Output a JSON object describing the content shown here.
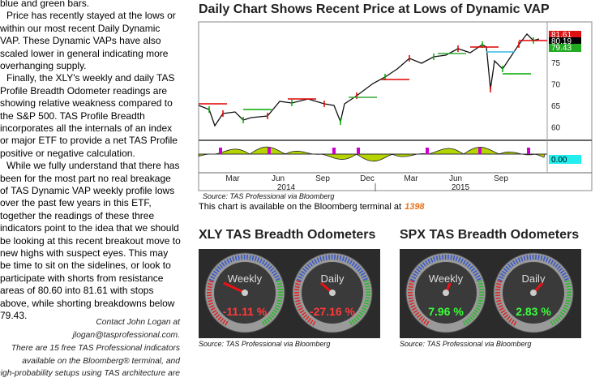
{
  "article": {
    "paragraphs": [
      [
        "blue and green bars."
      ],
      [
        "Price has recently stayed at the lows or",
        "within our most recent Daily Dynamic",
        "VAP. These Dynamic VAPs have also",
        "scaled lower in general indicating more",
        "overhanging supply."
      ],
      [
        "Finally, the XLY's weekly and daily TAS",
        "Profile Breadth Odometer readings are",
        "showing relative weakness compared to",
        "the S&P 500. TAS Profile Breadth",
        "incorporates all the internals of an index",
        "or major ETF to provide a net TAS Profile",
        "positive or negative calculation."
      ],
      [
        "While we fully understand that there has",
        "been for the most part no real breakage",
        "of TAS Dynamic VAP weekly profile lows",
        "over the past few years in this ETF,",
        "together the readings of these three",
        "indicators point to the idea that we should",
        "be looking at this recent breakout move to",
        "new highs with suspect eyes. This may",
        "be time to sit on the sidelines, or look to",
        "participate with shorts from resistance",
        "areas of 80.60 into 81.61 with stops",
        "above, while shorting breakdowns below",
        "79.43."
      ]
    ],
    "contact": [
      "Contact John Logan at",
      "jlogan@tasprofessional.com."
    ],
    "footer": [
      "There are 15 free TAS Professional indicators",
      "available on the Bloomberg® terminal, and",
      "high-probability setups using TAS architecture are"
    ]
  },
  "chart": {
    "title": "Daily Chart Shows Recent Price at Lows of Dynamic VAP",
    "price_axis": [
      "75",
      "70",
      "65",
      "60"
    ],
    "price_tags": [
      "81.61",
      "80.19",
      "79.43"
    ],
    "indicator_tag": "0.00",
    "months": [
      "Mar",
      "Jun",
      "Sep",
      "Dec",
      "Mar",
      "Jun",
      "Sep"
    ],
    "years": [
      "2014",
      "2015"
    ],
    "source": "Source:  TAS Professional via Bloomberg",
    "availability": "This chart is available on the Bloomberg terminal at",
    "code": "1398"
  },
  "odometers": [
    {
      "title": "XLY TAS Breadth Odometers",
      "gauges": [
        {
          "label": "Weekly",
          "value": "-11.11 %"
        },
        {
          "label": "Daily",
          "value": "-27.16 %"
        }
      ],
      "source": "Source: TAS Professional via Bloomberg"
    },
    {
      "title": "SPX TAS Breadth Odometers",
      "gauges": [
        {
          "label": "Weekly",
          "value": "7.96 %"
        },
        {
          "label": "Daily",
          "value": "2.83 %"
        }
      ],
      "source": "Source:  TAS Professional via Bloomberg"
    }
  ]
}
